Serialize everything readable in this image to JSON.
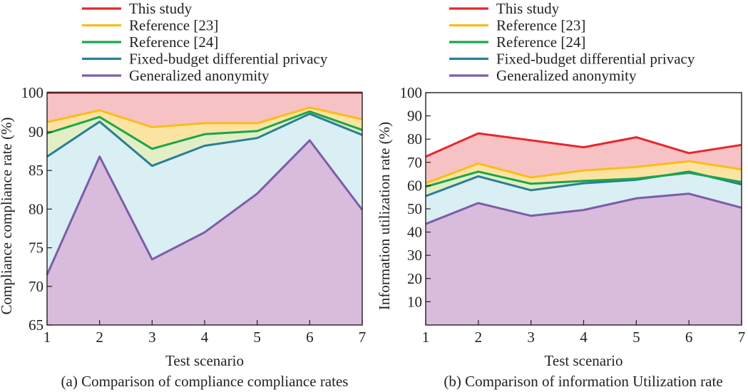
{
  "chart_data": [
    {
      "type": "area",
      "caption": "(a) Comparison of compliance compliance rates",
      "xlabel": "Test scenario",
      "ylabel": "Compliance compliance rate (%)",
      "x": [
        1,
        2,
        3,
        4,
        5,
        6,
        7
      ],
      "xlim": [
        1,
        7
      ],
      "ylim": [
        65,
        100
      ],
      "yticks": [
        65,
        70,
        75,
        80,
        85,
        90,
        100
      ],
      "grid": false,
      "legend_position": "top",
      "series": [
        {
          "name": "This study",
          "color": "#e8262d",
          "fill": "#f7c2c4",
          "values": [
            100,
            100,
            100,
            100,
            100,
            100,
            100
          ]
        },
        {
          "name": "Reference [23]",
          "color": "#fbbc1a",
          "fill": "#fbe4a3",
          "values": [
            92.5,
            95.5,
            91.2,
            92.2,
            92.2,
            96.2,
            93.2
          ]
        },
        {
          "name": "Reference [24]",
          "color": "#1aa64a",
          "fill": "#e2efc6",
          "values": [
            89.8,
            93.8,
            87.8,
            89.7,
            90.2,
            95.2,
            90.5
          ]
        },
        {
          "name": "Fixed-budget differential privacy",
          "color": "#2a7f96",
          "fill": "#d9eff4",
          "values": [
            86.8,
            92.6,
            85.6,
            88.2,
            89.2,
            94.6,
            89.6
          ]
        },
        {
          "name": "Generalized anonymity",
          "color": "#7b5ea7",
          "fill": "#d9bcdc",
          "values": [
            71.5,
            86.8,
            73.5,
            77,
            82,
            88.9,
            79.9
          ]
        }
      ]
    },
    {
      "type": "area",
      "caption": "(b) Comparison of information Utilization rate",
      "xlabel": "Test scenario",
      "ylabel": "Information utilization rate (%)",
      "x": [
        1,
        2,
        3,
        4,
        5,
        6,
        7
      ],
      "xlim": [
        1,
        7
      ],
      "ylim": [
        0,
        100
      ],
      "yticks": [
        10,
        20,
        30,
        40,
        50,
        60,
        70,
        80,
        90,
        100
      ],
      "grid": false,
      "legend_position": "top",
      "series": [
        {
          "name": "This study",
          "color": "#e8262d",
          "fill": "#f7c2c4",
          "values": [
            72.5,
            82.5,
            79.5,
            76.5,
            80.8,
            74,
            77.5
          ]
        },
        {
          "name": "Reference [23]",
          "color": "#fbbc1a",
          "fill": "#fbe4a3",
          "values": [
            61,
            69.5,
            63.5,
            66.5,
            68,
            70.5,
            67
          ]
        },
        {
          "name": "Reference [24]",
          "color": "#1aa64a",
          "fill": "#e2efc6",
          "values": [
            59.5,
            66,
            60.8,
            62,
            63,
            65.5,
            61.5
          ]
        },
        {
          "name": "Fixed-budget differential privacy",
          "color": "#2a7f96",
          "fill": "#d9eff4",
          "values": [
            55.5,
            64,
            58,
            61,
            62.5,
            66,
            60.5
          ]
        },
        {
          "name": "Generalized anonymity",
          "color": "#7b5ea7",
          "fill": "#d9bcdc",
          "values": [
            43.5,
            52.5,
            47,
            49.5,
            54.5,
            56.5,
            50.5
          ]
        }
      ]
    }
  ]
}
